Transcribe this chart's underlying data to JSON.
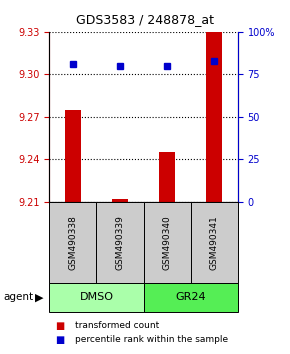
{
  "title": "GDS3583 / 248878_at",
  "ylim_left": [
    9.21,
    9.33
  ],
  "ylim_right": [
    0,
    100
  ],
  "yticks_left": [
    9.21,
    9.24,
    9.27,
    9.3,
    9.33
  ],
  "yticks_right": [
    0,
    25,
    50,
    75,
    100
  ],
  "ytick_labels_right": [
    "0",
    "25",
    "50",
    "75",
    "100%"
  ],
  "samples": [
    "GSM490338",
    "GSM490339",
    "GSM490340",
    "GSM490341"
  ],
  "bar_values": [
    9.275,
    9.212,
    9.245,
    9.33
  ],
  "percentile_values": [
    81,
    80,
    80,
    83
  ],
  "bar_color": "#cc0000",
  "percentile_color": "#0000cc",
  "baseline": 9.21,
  "groups": [
    {
      "label": "DMSO",
      "cols": [
        0,
        1
      ],
      "color": "#aaffaa"
    },
    {
      "label": "GR24",
      "cols": [
        2,
        3
      ],
      "color": "#55ee55"
    }
  ],
  "sample_box_color": "#cccccc",
  "legend_items": [
    {
      "label": "transformed count",
      "color": "#cc0000"
    },
    {
      "label": "percentile rank within the sample",
      "color": "#0000cc"
    }
  ],
  "bar_width": 0.35,
  "left_tick_color": "#cc0000",
  "right_tick_color": "#0000cc"
}
